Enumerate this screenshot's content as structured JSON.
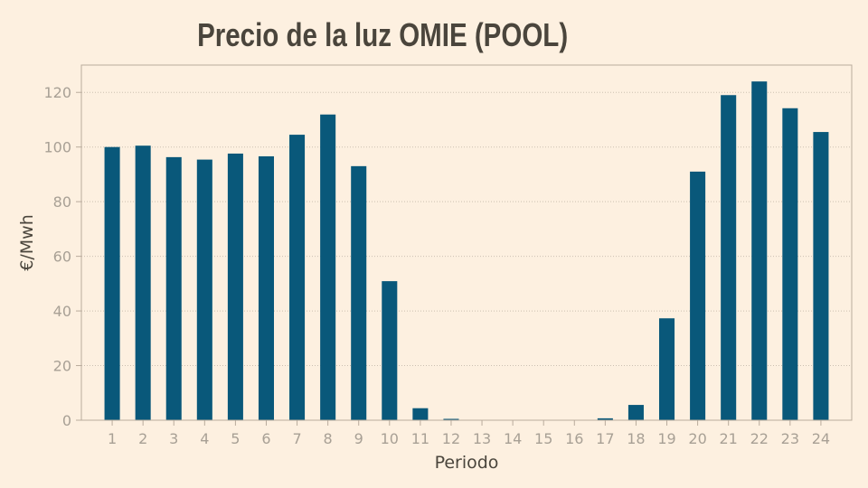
{
  "colors": {
    "background": "#fdf0e0",
    "bar": "#09587a",
    "axis": "#b9ab9c",
    "grid": "#cbbfb1",
    "text": "#4a453c",
    "tick_text": "#a8a095"
  },
  "chart_data": {
    "type": "bar",
    "title": "Precio de la luz OMIE (POOL)",
    "xlabel": "Periodo",
    "ylabel": "€/Mwh",
    "categories": [
      "1",
      "2",
      "3",
      "4",
      "5",
      "6",
      "7",
      "8",
      "9",
      "10",
      "11",
      "12",
      "13",
      "14",
      "15",
      "16",
      "17",
      "18",
      "19",
      "20",
      "21",
      "22",
      "23",
      "24"
    ],
    "values": [
      100.0,
      100.5,
      96.3,
      95.4,
      97.6,
      96.6,
      104.5,
      111.9,
      93.0,
      50.9,
      4.4,
      0.5,
      0,
      0,
      0,
      0,
      0.7,
      5.6,
      37.3,
      91.0,
      119.0,
      124.0,
      114.2,
      105.5
    ],
    "yticks": [
      0,
      20,
      40,
      60,
      80,
      100,
      120
    ],
    "ylim": [
      0,
      130
    ],
    "xlim": [
      0,
      25
    ],
    "grid": "horizontal dotted"
  }
}
